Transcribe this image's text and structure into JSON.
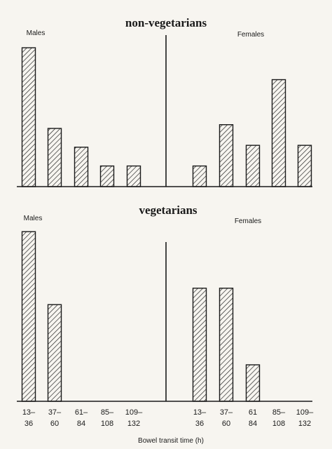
{
  "chart_data": [
    {
      "type": "bar",
      "title": "non-vegetarians",
      "categories": [
        "13–36",
        "37–60",
        "61–84",
        "85–108",
        "109–132"
      ],
      "series": [
        {
          "name": "Males",
          "values": [
            7.4,
            3.1,
            2.1,
            1.1,
            1.1
          ]
        },
        {
          "name": "Females",
          "values": [
            1.1,
            3.3,
            2.2,
            5.7,
            2.2
          ]
        }
      ],
      "ylim": [
        0,
        8
      ],
      "grid": false,
      "legend": "group labels top-left and top-right"
    },
    {
      "type": "bar",
      "title": "vegetarians",
      "categories": [
        "13–36",
        "37–60",
        "61–84",
        "85–108",
        "109–132"
      ],
      "series": [
        {
          "name": "Males",
          "values": [
            9.3,
            5.3,
            0,
            0,
            0
          ]
        },
        {
          "name": "Females",
          "values": [
            6.2,
            6.2,
            2.0,
            0,
            0
          ]
        }
      ],
      "ylim": [
        0,
        10
      ],
      "grid": false,
      "legend": "group labels top-left and top-right"
    }
  ],
  "tick_labels": [
    [
      "13–",
      "36"
    ],
    [
      "37–",
      "60"
    ],
    [
      "61–",
      "84"
    ],
    [
      "85–",
      "108"
    ],
    [
      "109–",
      "132"
    ],
    [
      "13–",
      "36"
    ],
    [
      "37–",
      "60"
    ],
    [
      "61",
      "84"
    ],
    [
      "85–",
      "108"
    ],
    [
      "109–",
      "132"
    ]
  ],
  "xlabel": "Bowel transit time (h)",
  "colors": {
    "ink": "#1a1a1a",
    "paper": "#f7f5f0"
  }
}
